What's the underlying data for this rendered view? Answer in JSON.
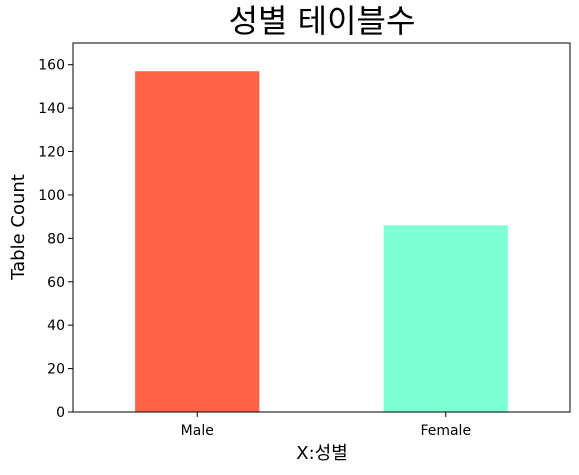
{
  "chart_data": {
    "type": "bar",
    "title": "성별 테이블수",
    "xlabel": "X:성별",
    "ylabel": "Table Count",
    "categories": [
      "Male",
      "Female"
    ],
    "values": [
      157,
      86
    ],
    "ylim": [
      0,
      170
    ],
    "yticks": [
      0,
      20,
      40,
      60,
      80,
      100,
      120,
      140,
      160
    ],
    "colors": [
      "#ff6347",
      "#7fffd4"
    ],
    "grid": false,
    "legend": "none"
  }
}
